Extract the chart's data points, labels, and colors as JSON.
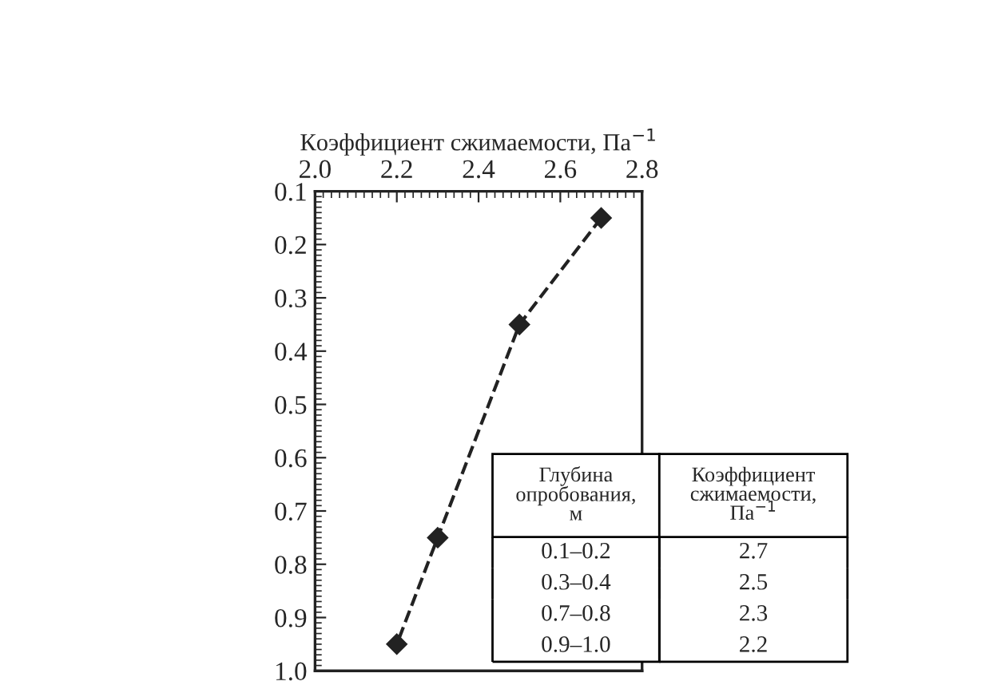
{
  "chart_data": {
    "type": "line",
    "xlabel": "Коэффициент сжимаемости, Па$^{−1}$",
    "x": [
      2.7,
      2.5,
      2.3,
      2.2
    ],
    "series": [
      {
        "color": "#222222",
        "values": [
          0.15,
          0.35,
          0.75,
          0.95
        ]
      }
    ],
    "xlim": [
      2.0,
      2.8
    ],
    "xticks": [
      {
        "value": 2.0,
        "label": "2.0"
      },
      2.2,
      2.4,
      2.6,
      2.8
    ],
    "ylim": [
      1.0,
      0.1
    ],
    "yticks": [
      0.1,
      0.2,
      0.3,
      0.4,
      0.5,
      0.6,
      0.7,
      0.8,
      0.9,
      {
        "value": 1.0,
        "label": "1.0"
      }
    ],
    "marker": "diamond",
    "line_style": "dashed",
    "grid": false,
    "annotations": [
      "Глубина опробования, м",
      "Коэффициент сжимаемости, Па$^{−1}$",
      "0.1–0.2",
      "2.7",
      "0.3–0.4",
      "2.5",
      "0.7–0.8",
      "2.3",
      "0.9–1.0",
      "2.2"
    ]
  }
}
